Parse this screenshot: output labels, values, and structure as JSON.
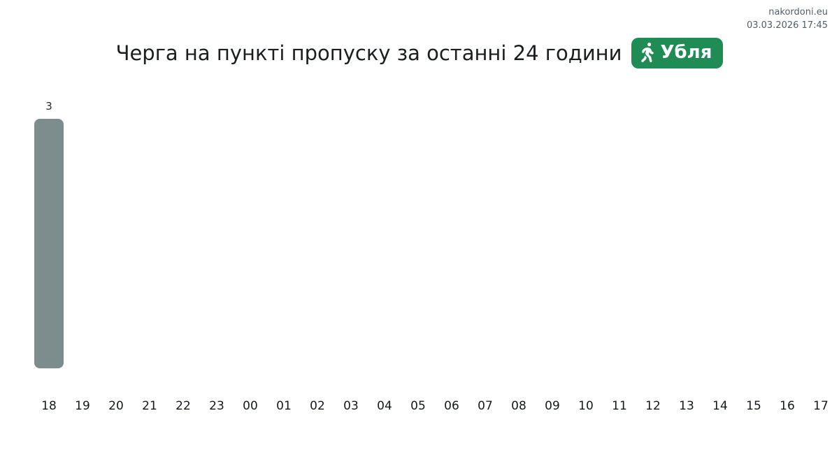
{
  "credit": {
    "site": "nakordoni.eu",
    "timestamp": "03.03.2026 17:45"
  },
  "header": {
    "title": "Черга на пункті пропуску за останні 24 години",
    "badge": {
      "label": "Убля",
      "icon": "pedestrian-icon",
      "color": "#1f8b55"
    }
  },
  "chart_data": {
    "type": "bar",
    "title": "Черга на пункті пропуску за останні 24 години",
    "categories": [
      "18",
      "19",
      "20",
      "21",
      "22",
      "23",
      "00",
      "01",
      "02",
      "03",
      "04",
      "05",
      "06",
      "07",
      "08",
      "09",
      "10",
      "11",
      "12",
      "13",
      "14",
      "15",
      "16",
      "17"
    ],
    "values": [
      3,
      0,
      0,
      0,
      0,
      0,
      0,
      0,
      0,
      0,
      0,
      0,
      0,
      0,
      0,
      0,
      0,
      0,
      0,
      0,
      0,
      0,
      0,
      0
    ],
    "xlabel": "",
    "ylabel": "",
    "ylim": [
      0,
      3
    ],
    "grid": false,
    "legend": "none",
    "axes_lines": "none",
    "bar_color": "#7d8c8d",
    "value_label_color": "#2b2b2b",
    "value_labels_shown_only_for_positive": true
  }
}
